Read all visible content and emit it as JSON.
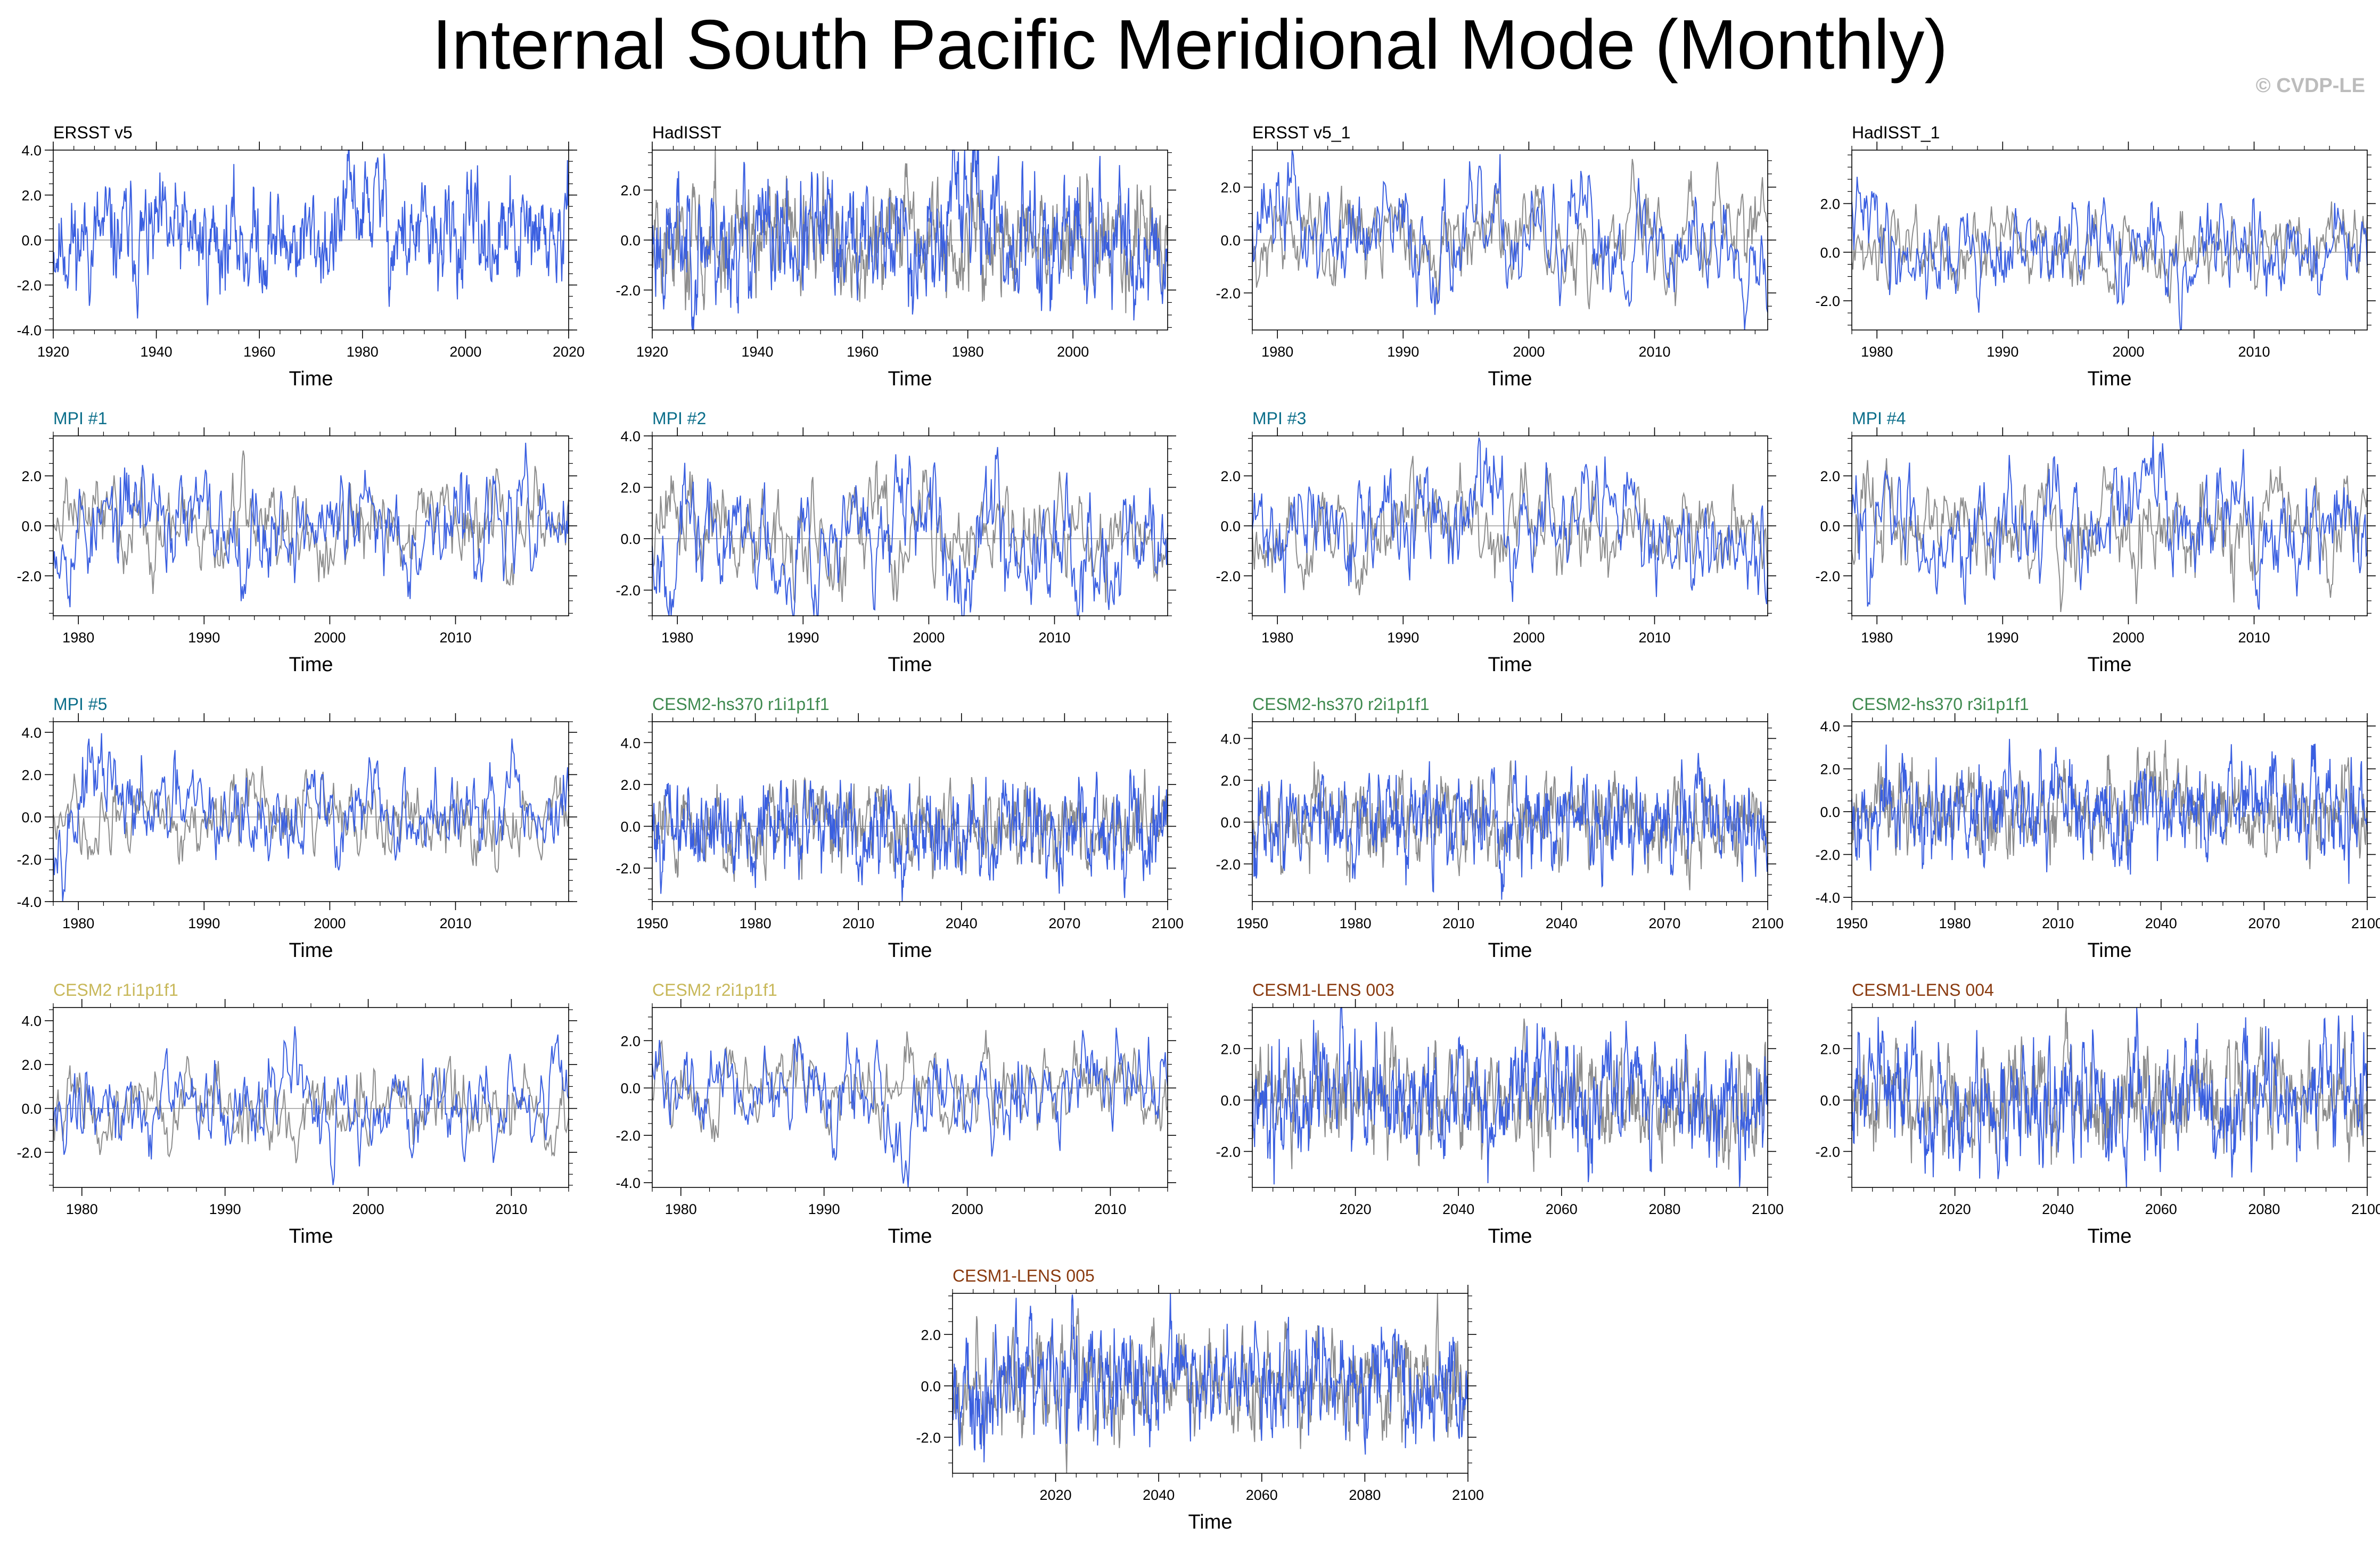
{
  "page": {
    "title": "Internal South Pacific Meridional Mode (Monthly)",
    "credit": "© CVDP-LE"
  },
  "colors": {
    "model_line": "#3a5fe0",
    "obs_line": "#8c8c8c",
    "zero_line": "#9a9a9a",
    "frame": "#000000",
    "title_obs": "#000000",
    "title_mpi": "#0b6e8a",
    "title_cesm2_hs370": "#3f8a4f",
    "title_cesm2": "#c8b85a",
    "title_cesm1_lens": "#8a3b10"
  },
  "chart_data": [
    {
      "type": "line",
      "title": "ERSST v5",
      "title_color": "#000000",
      "xlabel": "Time",
      "ylabel": "",
      "xlim": [
        1920,
        2020
      ],
      "xticks": [
        1920,
        1940,
        1960,
        1980,
        2000,
        2020
      ],
      "ylim": [
        -4,
        4
      ],
      "yticks": [
        -4,
        -2,
        0,
        2,
        4
      ],
      "ytick_labels": [
        "-4.0",
        "-2.0",
        "0.0",
        "2.0",
        "4.0"
      ],
      "has_obs_overlay": false,
      "seed": 11,
      "amp": 1.05,
      "bump": [
        1976,
        1985,
        1.5
      ]
    },
    {
      "type": "line",
      "title": "HadISST",
      "title_color": "#000000",
      "xlabel": "Time",
      "ylabel": "",
      "xlim": [
        1920,
        2018
      ],
      "xticks": [
        1920,
        1940,
        1960,
        1980,
        2000
      ],
      "ylim": [
        -3.6,
        3.6
      ],
      "yticks": [
        -2,
        0,
        2
      ],
      "ytick_labels": [
        "-2.0",
        "0.0",
        "2.0"
      ],
      "has_obs_overlay": true,
      "seed": 23,
      "amp": 1.15,
      "bump": [
        1976,
        1985,
        1.4
      ]
    },
    {
      "type": "line",
      "title": "ERSST v5_1",
      "title_color": "#000000",
      "xlabel": "Time",
      "ylabel": "",
      "xlim": [
        1978,
        2019
      ],
      "xticks": [
        1980,
        1990,
        2000,
        2010
      ],
      "ylim": [
        -3.4,
        3.4
      ],
      "yticks": [
        -2,
        0,
        2
      ],
      "ytick_labels": [
        "-2.0",
        "0.0",
        "2.0"
      ],
      "has_obs_overlay": true,
      "seed": 37,
      "amp": 0.95,
      "bump": [
        1978,
        1982,
        1.4
      ]
    },
    {
      "type": "line",
      "title": "HadISST_1",
      "title_color": "#000000",
      "xlabel": "Time",
      "ylabel": "",
      "xlim": [
        1978,
        2019
      ],
      "xticks": [
        1980,
        1990,
        2000,
        2010
      ],
      "ylim": [
        -3.2,
        4.2
      ],
      "yticks": [
        -2,
        0,
        2
      ],
      "ytick_labels": [
        "-2.0",
        "0.0",
        "2.0"
      ],
      "has_obs_overlay": true,
      "seed": 41,
      "amp": 0.85,
      "bump": [
        1978,
        1981,
        1.2
      ]
    },
    {
      "type": "line",
      "title": "MPI #1",
      "title_color": "#0b6e8a",
      "xlabel": "Time",
      "ylabel": "",
      "xlim": [
        1978,
        2019
      ],
      "xticks": [
        1980,
        1990,
        2000,
        2010
      ],
      "ylim": [
        -3.6,
        3.6
      ],
      "yticks": [
        -2,
        0,
        2
      ],
      "ytick_labels": [
        "-2.0",
        "0.0",
        "2.0"
      ],
      "has_obs_overlay": true,
      "seed": 53,
      "amp": 0.95,
      "bump": [
        1984,
        1987,
        1.0
      ]
    },
    {
      "type": "line",
      "title": "MPI #2",
      "title_color": "#0b6e8a",
      "xlabel": "Time",
      "ylabel": "",
      "xlim": [
        1978,
        2019
      ],
      "xticks": [
        1980,
        1990,
        2000,
        2010
      ],
      "ylim": [
        -3.0,
        4.0
      ],
      "yticks": [
        -2,
        0,
        2,
        4
      ],
      "ytick_labels": [
        "-2.0",
        "0.0",
        "2.0",
        "4.0"
      ],
      "has_obs_overlay": true,
      "seed": 67,
      "amp": 1.05,
      "bump": [
        2004,
        2006,
        1.4
      ]
    },
    {
      "type": "line",
      "title": "MPI #3",
      "title_color": "#0b6e8a",
      "xlabel": "Time",
      "ylabel": "",
      "xlim": [
        1978,
        2019
      ],
      "xticks": [
        1980,
        1990,
        2000,
        2010
      ],
      "ylim": [
        -3.6,
        3.6
      ],
      "yticks": [
        -2,
        0,
        2
      ],
      "ytick_labels": [
        "-2.0",
        "0.0",
        "2.0"
      ],
      "has_obs_overlay": true,
      "seed": 71,
      "amp": 0.95,
      "bump": [
        1995,
        1998,
        1.2
      ]
    },
    {
      "type": "line",
      "title": "MPI #4",
      "title_color": "#0b6e8a",
      "xlabel": "Time",
      "ylabel": "",
      "xlim": [
        1978,
        2019
      ],
      "xticks": [
        1980,
        1990,
        2000,
        2010
      ],
      "ylim": [
        -3.6,
        3.6
      ],
      "yticks": [
        -2,
        0,
        2
      ],
      "ytick_labels": [
        "-2.0",
        "0.0",
        "2.0"
      ],
      "has_obs_overlay": true,
      "seed": 83,
      "amp": 1.0,
      "bump": [
        2001,
        2003,
        1.6
      ]
    },
    {
      "type": "line",
      "title": "MPI #5",
      "title_color": "#0b6e8a",
      "xlabel": "Time",
      "ylabel": "",
      "xlim": [
        1978,
        2019
      ],
      "xticks": [
        1980,
        1990,
        2000,
        2010
      ],
      "ylim": [
        -4,
        4.5
      ],
      "yticks": [
        -4,
        -2,
        0,
        2,
        4
      ],
      "ytick_labels": [
        "-4.0",
        "-2.0",
        "0.0",
        "2.0",
        "4.0"
      ],
      "has_obs_overlay": true,
      "seed": 97,
      "amp": 1.0,
      "bump": [
        1980,
        1983,
        1.5
      ]
    },
    {
      "type": "line",
      "title": "CESM2-hs370 r1i1p1f1",
      "title_color": "#3f8a4f",
      "xlabel": "Time",
      "ylabel": "",
      "xlim": [
        1950,
        2100
      ],
      "xticks": [
        1950,
        1980,
        2010,
        2040,
        2070,
        2100
      ],
      "ylim": [
        -3.6,
        5.0
      ],
      "yticks": [
        -2,
        0,
        2,
        4
      ],
      "ytick_labels": [
        "-2.0",
        "0.0",
        "2.0",
        "4.0"
      ],
      "has_obs_overlay": true,
      "seed": 101,
      "amp": 1.05,
      "bump": [
        1994,
        1996,
        1.6
      ]
    },
    {
      "type": "line",
      "title": "CESM2-hs370 r2i1p1f1",
      "title_color": "#3f8a4f",
      "xlabel": "Time",
      "ylabel": "",
      "xlim": [
        1950,
        2100
      ],
      "xticks": [
        1950,
        1980,
        2010,
        2040,
        2070,
        2100
      ],
      "ylim": [
        -3.8,
        4.8
      ],
      "yticks": [
        -2,
        0,
        2,
        4
      ],
      "ytick_labels": [
        "-2.0",
        "0.0",
        "2.0",
        "4.0"
      ],
      "has_obs_overlay": true,
      "seed": 113,
      "amp": 1.05,
      "bump": [
        2025,
        2027,
        1.2
      ]
    },
    {
      "type": "line",
      "title": "CESM2-hs370 r3i1p1f1",
      "title_color": "#3f8a4f",
      "xlabel": "Time",
      "ylabel": "",
      "xlim": [
        1950,
        2100
      ],
      "xticks": [
        1950,
        1980,
        2010,
        2040,
        2070,
        2100
      ],
      "ylim": [
        -4.2,
        4.2
      ],
      "yticks": [
        -4,
        -2,
        0,
        2,
        4
      ],
      "ytick_labels": [
        "-4.0",
        "-2.0",
        "0.0",
        "2.0",
        "4.0"
      ],
      "has_obs_overlay": true,
      "seed": 127,
      "amp": 1.05,
      "bump": [
        2083,
        2085,
        1.4
      ]
    },
    {
      "type": "line",
      "title": "CESM2 r1i1p1f1",
      "title_color": "#c8b85a",
      "xlabel": "Time",
      "ylabel": "",
      "xlim": [
        1978,
        2014
      ],
      "xticks": [
        1980,
        1990,
        2000,
        2010
      ],
      "ylim": [
        -3.6,
        4.6
      ],
      "yticks": [
        -2,
        0,
        2,
        4
      ],
      "ytick_labels": [
        "-2.0",
        "0.0",
        "2.0",
        "4.0"
      ],
      "has_obs_overlay": true,
      "seed": 131,
      "amp": 0.95,
      "bump": [
        1993,
        1995,
        1.8
      ]
    },
    {
      "type": "line",
      "title": "CESM2 r2i1p1f1",
      "title_color": "#c8b85a",
      "xlabel": "Time",
      "ylabel": "",
      "xlim": [
        1978,
        2014
      ],
      "xticks": [
        1980,
        1990,
        2000,
        2010
      ],
      "ylim": [
        -4.2,
        3.4
      ],
      "yticks": [
        -4,
        -2,
        0,
        2
      ],
      "ytick_labels": [
        "-4.0",
        "-2.0",
        "0.0",
        "2.0"
      ],
      "has_obs_overlay": true,
      "seed": 139,
      "amp": 0.95,
      "bump": [
        1994,
        1996,
        -1.8
      ]
    },
    {
      "type": "line",
      "title": "CESM1-LENS 003",
      "title_color": "#8a3b10",
      "xlabel": "Time",
      "ylabel": "",
      "xlim": [
        2000,
        2100
      ],
      "xticks": [
        2020,
        2040,
        2060,
        2080,
        2100
      ],
      "ylim": [
        -3.4,
        3.6
      ],
      "yticks": [
        -2,
        0,
        2
      ],
      "ytick_labels": [
        "-2.0",
        "0.0",
        "2.0"
      ],
      "has_obs_overlay": true,
      "seed": 149,
      "amp": 1.05,
      "bump": [
        2055,
        2058,
        1.2
      ]
    },
    {
      "type": "line",
      "title": "CESM1-LENS 004",
      "title_color": "#8a3b10",
      "xlabel": "Time",
      "ylabel": "",
      "xlim": [
        2000,
        2100
      ],
      "xticks": [
        2020,
        2040,
        2060,
        2080,
        2100
      ],
      "ylim": [
        -3.4,
        3.6
      ],
      "yticks": [
        -2,
        0,
        2
      ],
      "ytick_labels": [
        "-2.0",
        "0.0",
        "2.0"
      ],
      "has_obs_overlay": true,
      "seed": 151,
      "amp": 1.05,
      "bump": [
        2032,
        2034,
        1.0
      ]
    },
    {
      "type": "line",
      "title": "CESM1-LENS 005",
      "title_color": "#8a3b10",
      "xlabel": "Time",
      "ylabel": "",
      "xlim": [
        2000,
        2100
      ],
      "xticks": [
        2020,
        2040,
        2060,
        2080,
        2100
      ],
      "ylim": [
        -3.4,
        3.6
      ],
      "yticks": [
        -2,
        0,
        2
      ],
      "ytick_labels": [
        "-2.0",
        "0.0",
        "2.0"
      ],
      "has_obs_overlay": true,
      "seed": 163,
      "amp": 1.05,
      "bump": [
        2040,
        2046,
        1.0
      ]
    }
  ]
}
